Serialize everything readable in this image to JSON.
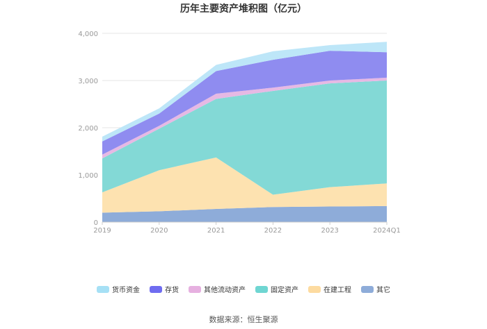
{
  "chart_data": {
    "type": "area",
    "stacked": true,
    "title": "历年主要资产堆积图（亿元）",
    "x": [
      "2019",
      "2020",
      "2021",
      "2022",
      "2023",
      "2024Q1"
    ],
    "y_ticks": [
      "0",
      "1,000",
      "2,000",
      "3,000",
      "4,000"
    ],
    "ylim": [
      0,
      4000
    ],
    "grid": true,
    "legend_position": "bottom",
    "series": [
      {
        "name": "其它",
        "color": "#8eacd9",
        "values": [
          200,
          230,
          280,
          320,
          330,
          340
        ]
      },
      {
        "name": "在建工程",
        "color": "#fde2b0",
        "values": [
          430,
          870,
          1090,
          260,
          410,
          480
        ]
      },
      {
        "name": "固定资产",
        "color": "#83d9d6",
        "values": [
          720,
          880,
          1240,
          2200,
          2200,
          2180
        ]
      },
      {
        "name": "其他流动资产",
        "color": "#e6b9e4",
        "values": [
          80,
          60,
          110,
          70,
          60,
          60
        ]
      },
      {
        "name": "存货",
        "color": "#8f8cf0",
        "values": [
          280,
          260,
          480,
          590,
          630,
          540
        ]
      },
      {
        "name": "货币资金",
        "color": "#bde6f8",
        "values": [
          100,
          110,
          130,
          180,
          120,
          220
        ]
      }
    ]
  },
  "legend_order": [
    "货币资金",
    "存货",
    "其他流动资产",
    "固定资产",
    "在建工程",
    "其它"
  ],
  "legend_colors": {
    "货币资金": "#a6e0f5",
    "存货": "#6f6cf0",
    "其他流动资产": "#e6b0e0",
    "固定资产": "#6fd6d2",
    "在建工程": "#fddba0",
    "其它": "#8eacd9"
  },
  "source": "数据来源：恒生聚源"
}
